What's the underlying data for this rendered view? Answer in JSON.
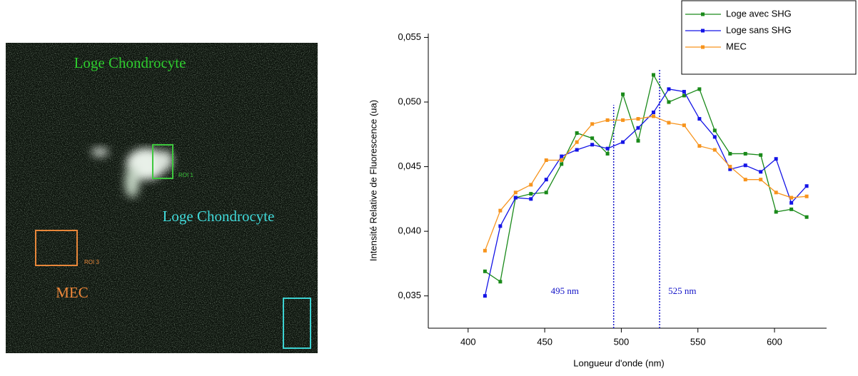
{
  "image_labels": {
    "top": "Loge Chondrocyte",
    "middle": "Loge Chondrocyte",
    "roi1": "ROI 1",
    "roi3": "ROI 3",
    "mec": "MEC"
  },
  "chart_data": {
    "type": "line",
    "x_label": "Longueur d'onde (nm)",
    "y_label": "Intensité Relative de Fluorescence (ua)",
    "x": [
      411,
      421,
      431,
      441,
      451,
      461,
      471,
      481,
      491,
      501,
      511,
      521,
      531,
      541,
      551,
      561,
      571,
      581,
      591,
      601,
      611,
      621
    ],
    "series": [
      {
        "name": "Loge avec SHG",
        "color": "#1a8a1a",
        "values": [
          0.0369,
          0.0361,
          0.0426,
          0.0429,
          0.043,
          0.0452,
          0.0476,
          0.0472,
          0.046,
          0.0506,
          0.047,
          0.0521,
          0.05,
          0.0505,
          0.051,
          0.0478,
          0.046,
          0.046,
          0.0459,
          0.0415,
          0.0417,
          0.0411
        ]
      },
      {
        "name": "Loge sans SHG",
        "color": "#1414e6",
        "values": [
          0.035,
          0.0404,
          0.0426,
          0.0425,
          0.044,
          0.0458,
          0.0463,
          0.0467,
          0.0464,
          0.0469,
          0.048,
          0.0492,
          0.051,
          0.0508,
          0.0487,
          0.0473,
          0.0448,
          0.0451,
          0.0446,
          0.0456,
          0.0422,
          0.0435
        ]
      },
      {
        "name": "MEC",
        "color": "#f7941d",
        "values": [
          0.0385,
          0.0416,
          0.043,
          0.0436,
          0.0455,
          0.0455,
          0.0469,
          0.0483,
          0.0486,
          0.0486,
          0.0487,
          0.0489,
          0.0484,
          0.0482,
          0.0466,
          0.0463,
          0.045,
          0.044,
          0.044,
          0.043,
          0.0426,
          0.0427
        ]
      }
    ],
    "xlim": [
      374,
      634
    ],
    "xticks": [
      400,
      450,
      500,
      550,
      600
    ],
    "ylim": [
      0.0325,
      0.0553
    ],
    "yticks": [
      {
        "value": 0.035,
        "label": "0,035"
      },
      {
        "value": 0.04,
        "label": "0,040"
      },
      {
        "value": 0.045,
        "label": "0,045"
      },
      {
        "value": 0.05,
        "label": "0,050"
      },
      {
        "value": 0.055,
        "label": "0,055"
      }
    ],
    "vlines": [
      {
        "x": 495,
        "label": "495 nm",
        "color": "#1414c8"
      },
      {
        "x": 525,
        "label": "525 nm",
        "color": "#1414c8"
      }
    ],
    "legend": "top-right"
  }
}
